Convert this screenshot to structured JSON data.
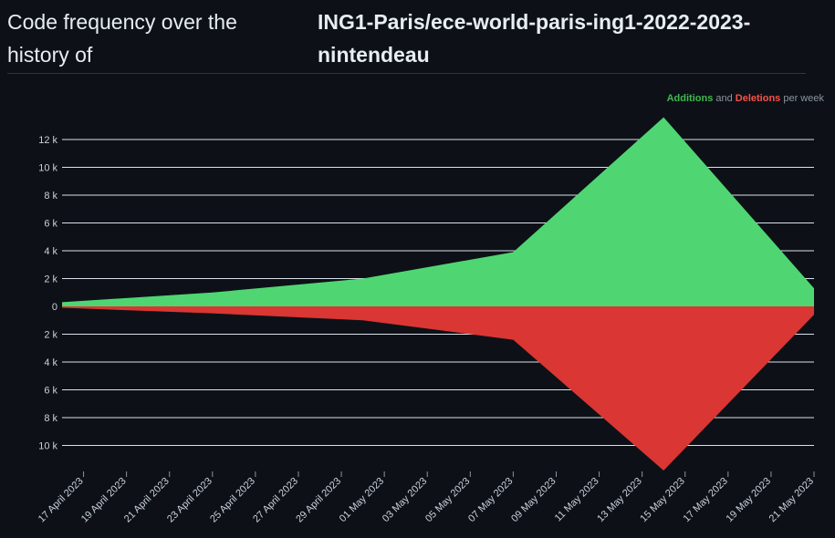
{
  "header": {
    "title_prefix": "Code frequency over the history of",
    "repo": "ING1-Paris/ece-world-paris-ing1-2022-2023-nintendeau"
  },
  "legend": {
    "additions": "Additions",
    "and": " and ",
    "deletions": "Deletions",
    "suffix": " per week"
  },
  "colors": {
    "additions": "#4fd672",
    "deletions": "#da3633",
    "grid": "#e6edf3",
    "background": "#0d1117"
  },
  "chart_data": {
    "type": "area",
    "x_dates": [
      "2023-04-16",
      "2023-04-23",
      "2023-04-30",
      "2023-05-07",
      "2023-05-14",
      "2023-05-21"
    ],
    "series": [
      {
        "name": "Additions",
        "values": [
          300,
          1000,
          2000,
          3900,
          13600,
          1300
        ]
      },
      {
        "name": "Deletions",
        "values": [
          -100,
          -500,
          -1000,
          -2400,
          -11800,
          -600
        ]
      }
    ],
    "ylim": [
      -11000,
      13000
    ],
    "yticks": [
      12000,
      10000,
      8000,
      6000,
      4000,
      2000,
      0,
      -2000,
      -4000,
      -6000,
      -8000,
      -10000
    ],
    "ytick_labels": [
      "12 k",
      "10 k",
      "8 k",
      "6 k",
      "4 k",
      "2 k",
      "0",
      "2 k",
      "4 k",
      "6 k",
      "8 k",
      "10 k"
    ],
    "xtick_dates": [
      "2023-04-17",
      "2023-04-19",
      "2023-04-21",
      "2023-04-23",
      "2023-04-25",
      "2023-04-27",
      "2023-04-29",
      "2023-05-01",
      "2023-05-03",
      "2023-05-05",
      "2023-05-07",
      "2023-05-09",
      "2023-05-11",
      "2023-05-13",
      "2023-05-15",
      "2023-05-17",
      "2023-05-19",
      "2023-05-21"
    ],
    "xtick_labels": [
      "17 April 2023",
      "19 April 2023",
      "21 April 2023",
      "23 April 2023",
      "25 April 2023",
      "27 April 2023",
      "29 April 2023",
      "01 May 2023",
      "03 May 2023",
      "05 May 2023",
      "07 May 2023",
      "09 May 2023",
      "11 May 2023",
      "13 May 2023",
      "15 May 2023",
      "17 May 2023",
      "19 May 2023",
      "21 May 2023"
    ],
    "grid": true,
    "legend_position": "top-right"
  }
}
